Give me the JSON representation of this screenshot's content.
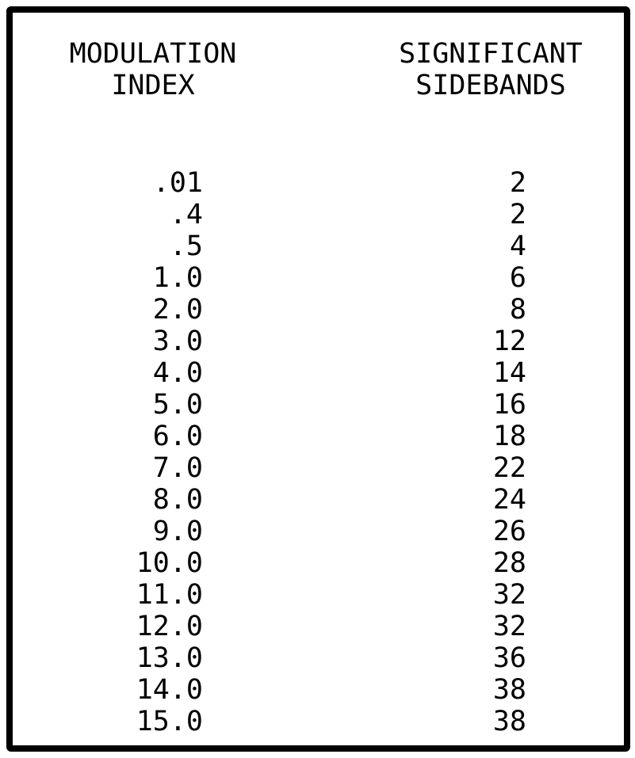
{
  "table": {
    "header_left_line1": "MODULATION",
    "header_left_line2": "INDEX",
    "header_right_line1": "SIGNIFICANT",
    "header_right_line2": "SIDEBANDS",
    "rows": [
      {
        "index": ".01",
        "sidebands": "2"
      },
      {
        "index": ".4",
        "sidebands": "2"
      },
      {
        "index": ".5",
        "sidebands": "4"
      },
      {
        "index": "1.0",
        "sidebands": "6"
      },
      {
        "index": "2.0",
        "sidebands": "8"
      },
      {
        "index": "3.0",
        "sidebands": "12"
      },
      {
        "index": "4.0",
        "sidebands": "14"
      },
      {
        "index": "5.0",
        "sidebands": "16"
      },
      {
        "index": "6.0",
        "sidebands": "18"
      },
      {
        "index": "7.0",
        "sidebands": "22"
      },
      {
        "index": "8.0",
        "sidebands": "24"
      },
      {
        "index": "9.0",
        "sidebands": "26"
      },
      {
        "index": "10.0",
        "sidebands": "28"
      },
      {
        "index": "11.0",
        "sidebands": "32"
      },
      {
        "index": "12.0",
        "sidebands": "32"
      },
      {
        "index": "13.0",
        "sidebands": "36"
      },
      {
        "index": "14.0",
        "sidebands": "38"
      },
      {
        "index": "15.0",
        "sidebands": "38"
      }
    ]
  }
}
